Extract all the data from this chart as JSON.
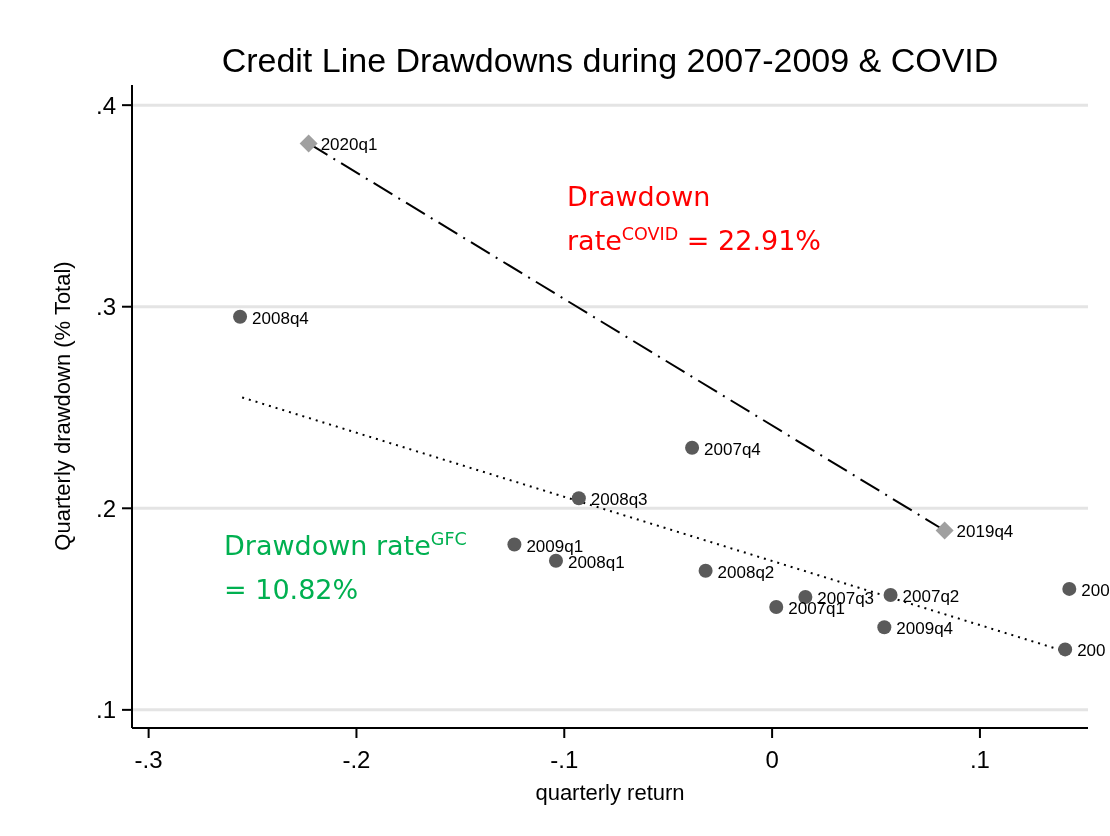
{
  "chart_data": {
    "type": "scatter",
    "title": "Credit Line Drawdowns during 2007-2009 & COVID",
    "xlabel": "quarterly return",
    "ylabel": "Quarterly drawdown (% Total)",
    "xlim": [
      -0.308,
      0.152
    ],
    "ylim": [
      0.091,
      0.41
    ],
    "xticks": [
      {
        "value": -0.3,
        "label": "-.3"
      },
      {
        "value": -0.2,
        "label": "-.2"
      },
      {
        "value": -0.1,
        "label": "-.1"
      },
      0,
      {
        "value": 0.1,
        "label": ".1"
      }
    ],
    "yticks": [
      {
        "value": 0.1,
        "label": ".1"
      },
      {
        "value": 0.2,
        "label": ".2"
      },
      {
        "value": 0.3,
        "label": ".3"
      },
      {
        "value": 0.4,
        "label": ".4"
      }
    ],
    "grid": "y",
    "series": [
      {
        "marker": "circle",
        "color": "#5a5a5a",
        "x": [
          -0.256,
          -0.0385,
          -0.093,
          -0.124,
          -0.104,
          -0.032,
          0.016,
          0.002,
          0.057,
          0.054,
          0.143,
          0.141
        ],
        "values": [
          0.295,
          0.23,
          0.205,
          0.182,
          0.174,
          0.169,
          0.156,
          0.151,
          0.157,
          0.141,
          0.16,
          0.13
        ]
      },
      {
        "marker": "diamond",
        "color": "#a0a0a0",
        "x": [
          -0.223,
          0.083
        ],
        "values": [
          0.381,
          0.189
        ]
      },
      {
        "type": "line",
        "line_style": "dashed",
        "color": "#000000",
        "x": [
          -0.223,
          0.083
        ],
        "values": [
          0.381,
          0.189
        ]
      },
      {
        "type": "line",
        "line_style": "dotted",
        "color": "#000000",
        "x": [
          -0.255,
          0.141
        ],
        "values": [
          0.255,
          0.129
        ]
      }
    ],
    "annotations": [
      {
        "text": "2008q4",
        "x": -0.256,
        "y": 0.295
      },
      {
        "text": "2007q4",
        "x": -0.0385,
        "y": 0.23
      },
      {
        "text": "2008q3",
        "x": -0.093,
        "y": 0.205
      },
      {
        "text": "2009q1",
        "x": -0.124,
        "y": 0.182
      },
      {
        "text": "2008q1",
        "x": -0.104,
        "y": 0.174
      },
      {
        "text": "2008q2",
        "x": -0.032,
        "y": 0.169
      },
      {
        "text": "2007q3",
        "x": 0.016,
        "y": 0.156
      },
      {
        "text": "2007q1",
        "x": 0.002,
        "y": 0.151
      },
      {
        "text": "2007q2",
        "x": 0.057,
        "y": 0.157
      },
      {
        "text": "2009q4",
        "x": 0.054,
        "y": 0.141
      },
      {
        "text": "200",
        "x": 0.143,
        "y": 0.16
      },
      {
        "text": "200",
        "x": 0.141,
        "y": 0.13
      },
      {
        "text": "2020q1",
        "x": -0.223,
        "y": 0.381
      },
      {
        "text": "2019q4",
        "x": 0.083,
        "y": 0.189
      },
      "Drawdown\nrate$^{COVID}$ = 22.91%",
      "Drawdown rate$^{GFC}$\n= 10.82%"
    ]
  }
}
